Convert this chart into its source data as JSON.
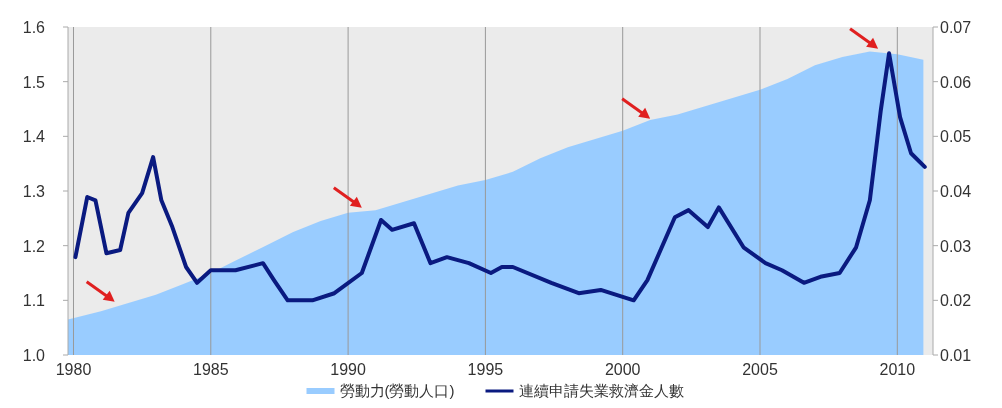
{
  "chart_data": {
    "type": "area",
    "xlim": [
      1979.8,
      2011.3
    ],
    "xticks": [
      1980,
      1985,
      1990,
      1995,
      2000,
      2005,
      2010
    ],
    "ylim": [
      1.0,
      1.6
    ],
    "yticks": [
      {
        "value": 1.0,
        "label": "1.0"
      },
      1.1,
      1.2,
      1.3,
      1.4,
      1.5,
      1.6
    ],
    "y2lim": [
      0.01,
      0.07
    ],
    "y2ticks": [
      0.01,
      0.02,
      0.03,
      0.04,
      0.05,
      0.06,
      0.07
    ],
    "grid": "x",
    "legend": "bottom",
    "series": [
      {
        "name": "勞動力(勞動人口)",
        "color": "#99ccff",
        "x": [
          1979.8,
          1981,
          1982,
          1983,
          1984,
          1985,
          1986,
          1987,
          1988,
          1989,
          1990,
          1991,
          1992,
          1993,
          1994,
          1995,
          1996,
          1997,
          1998,
          1999,
          2000,
          2001,
          2002,
          2003,
          2004,
          2005,
          2006,
          2007,
          2008,
          2009,
          2010,
          2010.95
        ],
        "values": [
          1.065,
          1.08,
          1.095,
          1.11,
          1.13,
          1.15,
          1.175,
          1.2,
          1.225,
          1.245,
          1.26,
          1.265,
          1.28,
          1.295,
          1.31,
          1.32,
          1.335,
          1.36,
          1.38,
          1.395,
          1.41,
          1.43,
          1.44,
          1.455,
          1.47,
          1.485,
          1.505,
          1.53,
          1.545,
          1.555,
          1.55,
          1.54
        ]
      },
      {
        "name": "連續申請失業救濟金人數",
        "type": "line",
        "axis": "y2",
        "color": "#0a1a80",
        "x": [
          1980.07,
          1980.5,
          1980.8,
          1981.2,
          1981.7,
          1982.0,
          1982.5,
          1982.9,
          1983.2,
          1983.6,
          1984.1,
          1984.5,
          1985.0,
          1985.9,
          1986.9,
          1987.3,
          1987.8,
          1988.7,
          1989.5,
          1990.5,
          1991.2,
          1991.6,
          1992.4,
          1993.0,
          1993.6,
          1994.4,
          1995.2,
          1995.6,
          1996.0,
          1997.4,
          1998.4,
          1999.2,
          2000.4,
          2000.9,
          2001.9,
          2002.4,
          2003.1,
          2003.5,
          2004.4,
          2005.2,
          2005.8,
          2006.6,
          2007.2,
          2007.9,
          2008.5,
          2009.0,
          2009.4,
          2009.7,
          2010.1,
          2010.5,
          2011.0
        ],
        "values": [
          0.0279,
          0.0389,
          0.0383,
          0.0286,
          0.0292,
          0.036,
          0.0396,
          0.0462,
          0.0383,
          0.0334,
          0.0261,
          0.0232,
          0.0255,
          0.0255,
          0.0268,
          0.0237,
          0.02,
          0.02,
          0.0213,
          0.025,
          0.0347,
          0.0329,
          0.0341,
          0.0268,
          0.0279,
          0.0268,
          0.025,
          0.0261,
          0.0261,
          0.0232,
          0.0213,
          0.0219,
          0.02,
          0.0237,
          0.0352,
          0.0365,
          0.0334,
          0.037,
          0.0297,
          0.0268,
          0.0255,
          0.0232,
          0.0243,
          0.025,
          0.0297,
          0.0383,
          0.0548,
          0.0652,
          0.0535,
          0.0469,
          0.0444
        ]
      }
    ]
  }
}
